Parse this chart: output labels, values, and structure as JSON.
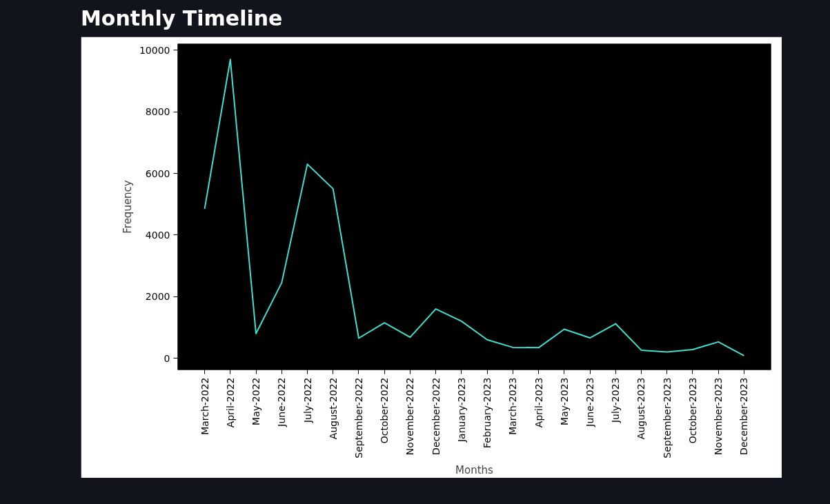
{
  "chart_data": {
    "type": "line",
    "title": "Monthly Timeline",
    "xlabel": "Months",
    "ylabel": "Frequency",
    "categories": [
      "March-2022",
      "April-2022",
      "May-2022",
      "June-2022",
      "July-2022",
      "August-2022",
      "September-2022",
      "October-2022",
      "November-2022",
      "December-2022",
      "January-2023",
      "February-2023",
      "March-2023",
      "April-2023",
      "May-2023",
      "June-2023",
      "July-2023",
      "August-2023",
      "September-2023",
      "October-2023",
      "November-2023",
      "December-2023"
    ],
    "series": [
      {
        "color": "#40e0d0",
        "values": [
          4850,
          9700,
          800,
          2450,
          6300,
          5500,
          650,
          1150,
          680,
          1600,
          1200,
          600,
          350,
          340,
          940,
          660,
          1120,
          260,
          200,
          280,
          530,
          80
        ]
      }
    ],
    "ylim": [
      -380,
      10210
    ],
    "yticks": [
      0,
      2000,
      4000,
      6000,
      8000,
      10000
    ],
    "grid": false
  }
}
